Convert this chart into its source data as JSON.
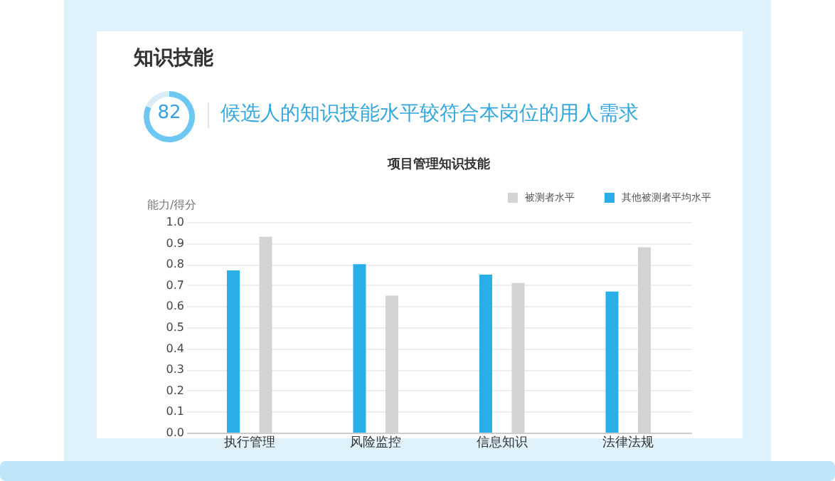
{
  "chart_data": [
    {
      "type": "donut",
      "categories": [
        null,
        null
      ],
      "values": [
        82,
        18
      ],
      "colors": [
        "#6cc8f2",
        "#dcecf6"
      ],
      "annotations": [
        "知识技能",
        "82",
        "候选人的知识技能水平较符合本岗位的用人需求"
      ]
    },
    {
      "type": "bar",
      "title": "项目管理知识技能",
      "ylabel": "能力/得分",
      "categories": [
        "执行管理",
        "风险监控",
        "信息知识",
        "法律法规"
      ],
      "series": [
        {
          "name": "其他被测者平均水平",
          "color": "#29aee8",
          "values": [
            0.77,
            0.8,
            0.75,
            0.67
          ]
        },
        {
          "name": "被测者水平",
          "color": "#d3d3d3",
          "values": [
            0.93,
            0.65,
            0.71,
            0.88
          ]
        }
      ],
      "ylim": [
        0,
        1
      ],
      "yticks": [
        {
          "value": 0,
          "label": "0.0"
        },
        0.1,
        0.2,
        0.3,
        0.4,
        0.5,
        0.6,
        0.7,
        0.8,
        0.9,
        {
          "value": 1,
          "label": "1.0"
        }
      ],
      "grid": "y",
      "legend": "top right"
    }
  ]
}
